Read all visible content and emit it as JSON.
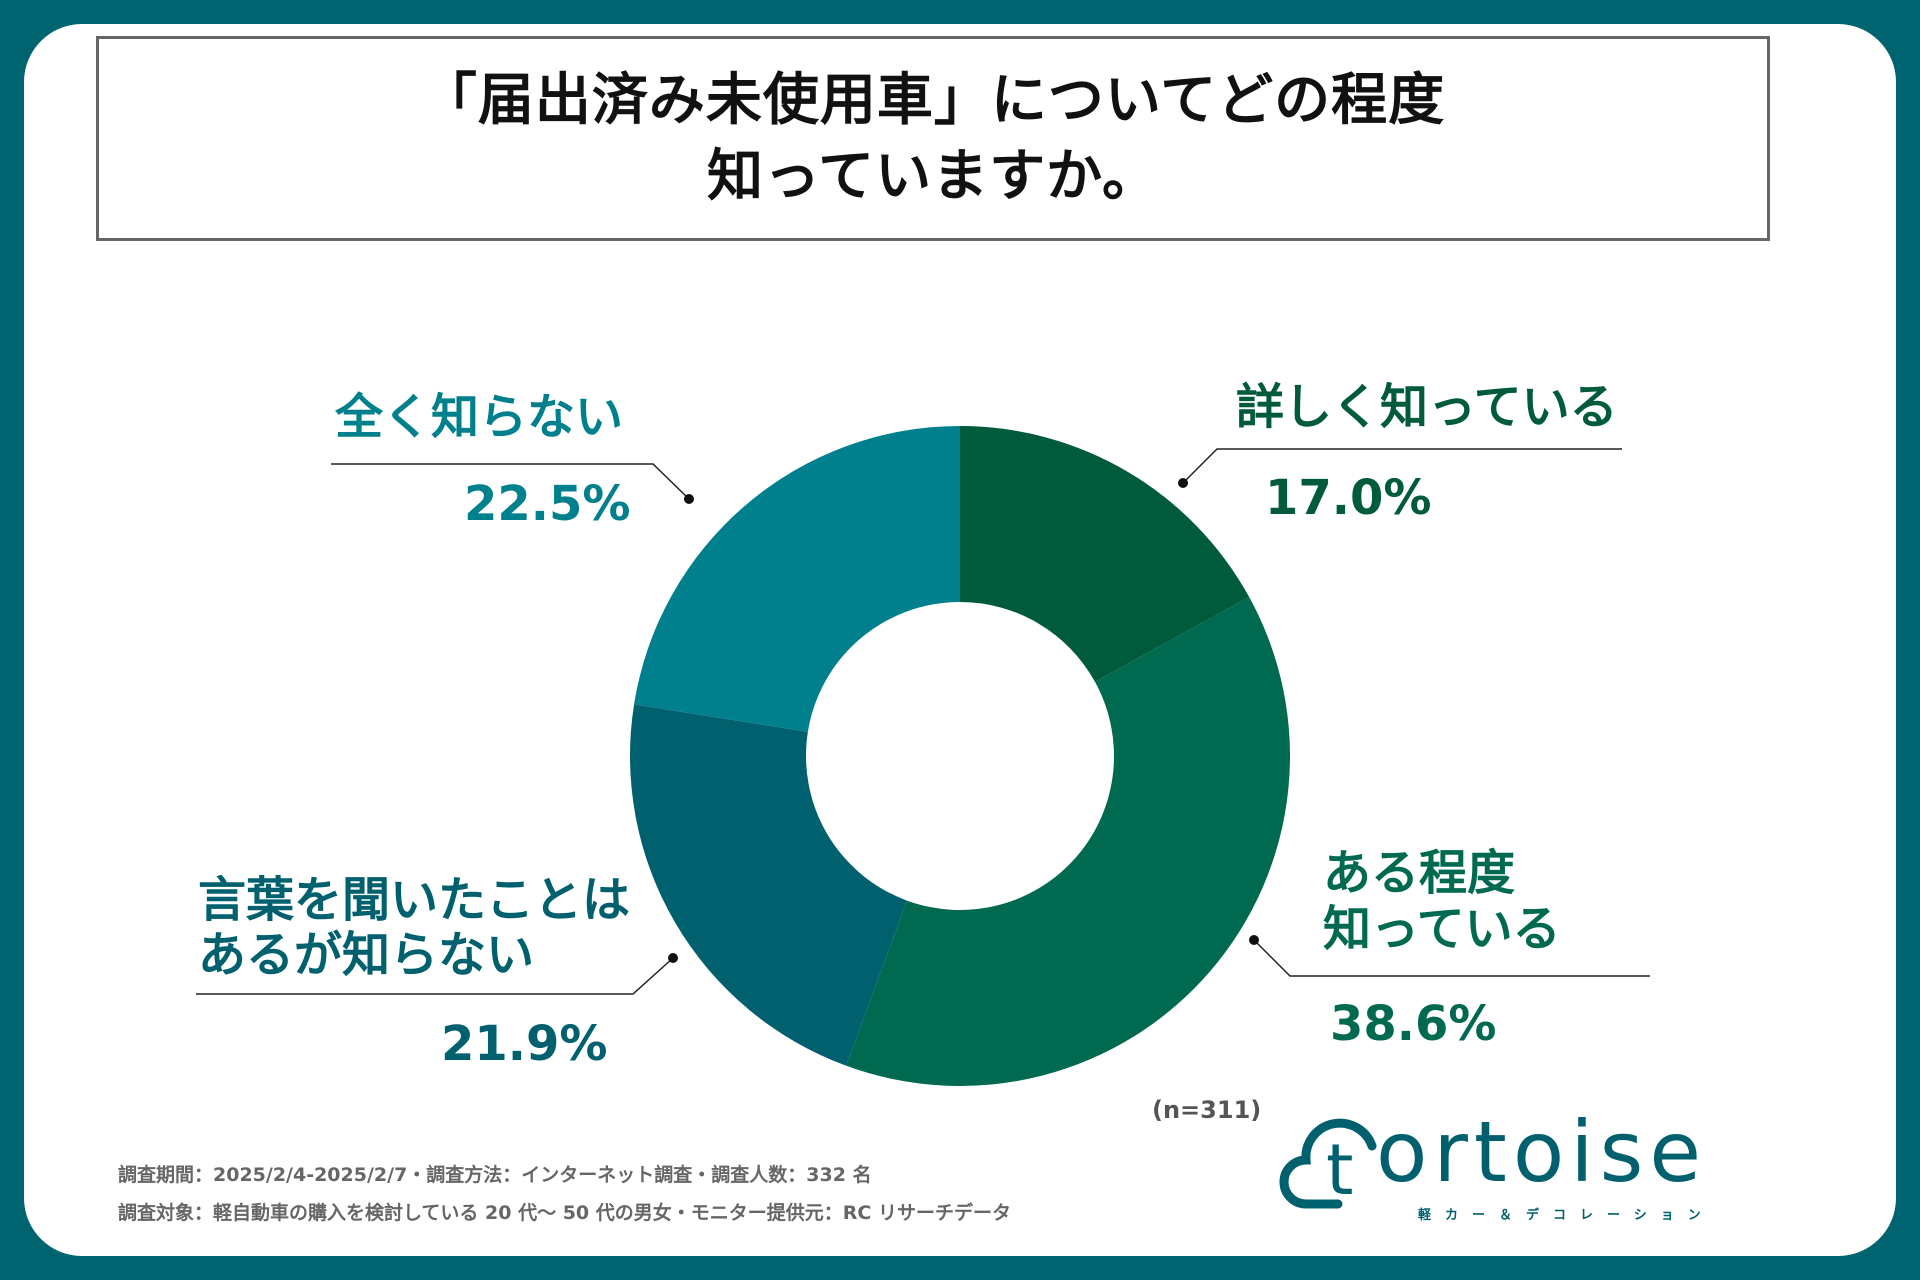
{
  "title": {
    "line1": "「届出済み未使用車」についてどの程度",
    "line2": "知っていますか。"
  },
  "chart_data": {
    "type": "pie",
    "donut": true,
    "categories": [
      "詳しく知っている",
      "ある程度知っている",
      "言葉を聞いたことはあるが知らない",
      "全く知らない"
    ],
    "values": [
      17.0,
      38.6,
      21.9,
      22.5
    ],
    "value_labels": [
      "17.0%",
      "38.6%",
      "21.9%",
      "22.5%"
    ],
    "colors": [
      "#005a3c",
      "#006a50",
      "#00606e",
      "#00808c"
    ],
    "sample_note": "(n=311)"
  },
  "labels": {
    "s0_line1": "詳しく知っている",
    "s1_line1": "ある程度",
    "s1_line2": "知っている",
    "s2_line1": "言葉を聞いたことは",
    "s2_line2": "あるが知らない",
    "s3_line1": "全く知らない"
  },
  "footnotes": {
    "line1": "調査期間：2025/2/4-2025/2/7・調査方法：インターネット調査・調査人数：332 名",
    "line2": "調査対象：軽自動車の購入を検討している 20 代〜 50 代の男女・モニター提供元：RC リサーチデータ"
  },
  "logo": {
    "word": "ortoise",
    "letter": "t",
    "subtitle": "軽カー＆デコレーション"
  }
}
